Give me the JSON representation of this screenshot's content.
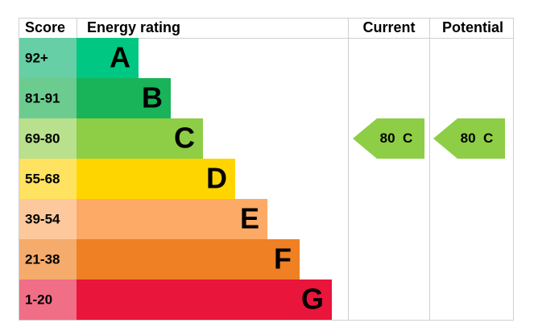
{
  "header": {
    "score": "Score",
    "rating": "Energy rating",
    "current": "Current",
    "potential": "Potential"
  },
  "bands": [
    {
      "score": "92+",
      "letter": "A",
      "color": "#00c781",
      "score_color": "#66cfa6"
    },
    {
      "score": "81-91",
      "letter": "B",
      "color": "#19b459",
      "score_color": "#6ccc90"
    },
    {
      "score": "69-80",
      "letter": "C",
      "color": "#8dce46",
      "score_color": "#b8e08d"
    },
    {
      "score": "55-68",
      "letter": "D",
      "color": "#ffd500",
      "score_color": "#ffe25f"
    },
    {
      "score": "39-54",
      "letter": "E",
      "color": "#fcaa65",
      "score_color": "#fdc99c"
    },
    {
      "score": "21-38",
      "letter": "F",
      "color": "#ef8023",
      "score_color": "#f4ab6c"
    },
    {
      "score": "1-20",
      "letter": "G",
      "color": "#e9153b",
      "score_color": "#f06e86"
    }
  ],
  "current": {
    "score": 80,
    "letter": "C"
  },
  "potential": {
    "score": 80,
    "letter": "C"
  }
}
